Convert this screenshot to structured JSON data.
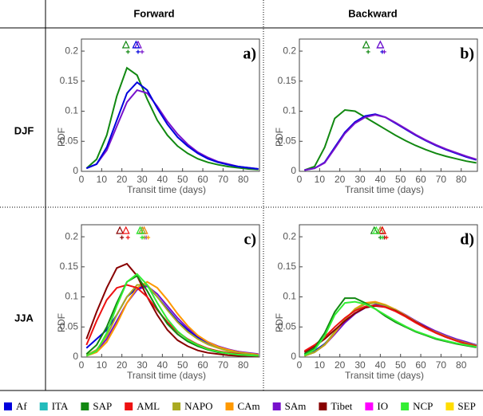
{
  "headers": {
    "columns": [
      "Forward",
      "Backward"
    ],
    "rows": [
      "DJF",
      "JJA"
    ]
  },
  "legend": [
    {
      "name": "Af",
      "color": "#0000dd"
    },
    {
      "name": "ITA",
      "color": "#22bbbb"
    },
    {
      "name": "SAP",
      "color": "#118811"
    },
    {
      "name": "AML",
      "color": "#ee1111"
    },
    {
      "name": "NAPO",
      "color": "#aaaa22"
    },
    {
      "name": "CAm",
      "color": "#ff9900"
    },
    {
      "name": "SAm",
      "color": "#7711cc"
    },
    {
      "name": "Tibet",
      "color": "#880000"
    },
    {
      "name": "IO",
      "color": "#ff00ff"
    },
    {
      "name": "NCP",
      "color": "#33ee33"
    },
    {
      "name": "SEP",
      "color": "#ffdd00"
    }
  ],
  "chart_data": [
    {
      "type": "line",
      "panel_label": "a)",
      "xlabel": "Transit time (days)",
      "ylabel": "PDF",
      "x": [
        2.5,
        7.5,
        12.5,
        17.5,
        22.5,
        27.5,
        32.5,
        37.5,
        42.5,
        47.5,
        52.5,
        57.5,
        62.5,
        67.5,
        72.5,
        77.5,
        82.5,
        87.5
      ],
      "xlim": [
        0,
        88
      ],
      "xticks": [
        0,
        10,
        20,
        30,
        40,
        50,
        60,
        70,
        80
      ],
      "ylim": [
        0,
        0.22
      ],
      "yticks": [
        0,
        0.05,
        0.1,
        0.15,
        0.2
      ],
      "series": [
        {
          "name": "SAP",
          "color": "#118811",
          "mean": 22,
          "median": 23,
          "values": [
            0.005,
            0.02,
            0.06,
            0.125,
            0.172,
            0.16,
            0.12,
            0.085,
            0.06,
            0.042,
            0.03,
            0.021,
            0.015,
            0.011,
            0.008,
            0.006,
            0.004,
            0.003
          ]
        },
        {
          "name": "SAm",
          "color": "#7711cc",
          "mean": 28,
          "median": 30,
          "values": [
            0.005,
            0.012,
            0.035,
            0.075,
            0.115,
            0.135,
            0.13,
            0.108,
            0.083,
            0.062,
            0.045,
            0.032,
            0.023,
            0.016,
            0.012,
            0.008,
            0.006,
            0.004
          ]
        },
        {
          "name": "Af",
          "color": "#0000dd",
          "mean": 27,
          "median": 28,
          "values": [
            0.005,
            0.012,
            0.04,
            0.085,
            0.13,
            0.148,
            0.135,
            0.105,
            0.078,
            0.057,
            0.042,
            0.03,
            0.021,
            0.015,
            0.011,
            0.008,
            0.006,
            0.004
          ]
        }
      ]
    },
    {
      "type": "line",
      "panel_label": "b)",
      "xlabel": "Transit time (days)",
      "ylabel": "PDF",
      "x": [
        2.5,
        7.5,
        12.5,
        17.5,
        22.5,
        27.5,
        32.5,
        37.5,
        42.5,
        47.5,
        52.5,
        57.5,
        62.5,
        67.5,
        72.5,
        77.5,
        82.5,
        87.5
      ],
      "xlim": [
        0,
        88
      ],
      "xticks": [
        0,
        10,
        20,
        30,
        40,
        50,
        60,
        70,
        80
      ],
      "ylim": [
        0,
        0.22
      ],
      "yticks": [
        0,
        0.05,
        0.1,
        0.15,
        0.2
      ],
      "series": [
        {
          "name": "SAP",
          "color": "#118811",
          "mean": 33,
          "median": 34,
          "values": [
            0.002,
            0.008,
            0.04,
            0.088,
            0.102,
            0.1,
            0.09,
            0.08,
            0.07,
            0.06,
            0.051,
            0.043,
            0.036,
            0.03,
            0.025,
            0.021,
            0.017,
            0.014
          ]
        },
        {
          "name": "Af",
          "color": "#0000dd",
          "mean": 40,
          "median": 41,
          "values": [
            0.002,
            0.005,
            0.015,
            0.04,
            0.065,
            0.082,
            0.092,
            0.095,
            0.09,
            0.08,
            0.07,
            0.06,
            0.051,
            0.043,
            0.036,
            0.03,
            0.024,
            0.019
          ]
        },
        {
          "name": "SAm",
          "color": "#7711cc",
          "mean": 40,
          "median": 42,
          "values": [
            0.002,
            0.005,
            0.014,
            0.038,
            0.063,
            0.08,
            0.09,
            0.094,
            0.09,
            0.081,
            0.071,
            0.061,
            0.052,
            0.044,
            0.037,
            0.031,
            0.025,
            0.02
          ]
        }
      ]
    },
    {
      "type": "line",
      "panel_label": "c)",
      "xlabel": "Transit time (days)",
      "ylabel": "PDF",
      "x": [
        2.5,
        7.5,
        12.5,
        17.5,
        22.5,
        27.5,
        32.5,
        37.5,
        42.5,
        47.5,
        52.5,
        57.5,
        62.5,
        67.5,
        72.5,
        77.5,
        82.5,
        87.5
      ],
      "xlim": [
        0,
        88
      ],
      "xticks": [
        0,
        10,
        20,
        30,
        40,
        50,
        60,
        70,
        80
      ],
      "ylim": [
        0,
        0.22
      ],
      "yticks": [
        0,
        0.05,
        0.1,
        0.15,
        0.2
      ],
      "series": [
        {
          "name": "Af",
          "color": "#0000dd",
          "mean": 30,
          "median": 31,
          "values": [
            0.015,
            0.03,
            0.045,
            0.07,
            0.1,
            0.115,
            0.118,
            0.1,
            0.08,
            0.06,
            0.045,
            0.033,
            0.024,
            0.017,
            0.012,
            0.009,
            0.006,
            0.004
          ]
        },
        {
          "name": "SAm",
          "color": "#7711cc",
          "mean": 31,
          "median": 32,
          "values": [
            0.002,
            0.01,
            0.03,
            0.06,
            0.09,
            0.112,
            0.118,
            0.105,
            0.085,
            0.065,
            0.048,
            0.035,
            0.025,
            0.018,
            0.013,
            0.009,
            0.007,
            0.005
          ]
        },
        {
          "name": "CAm",
          "color": "#ff9900",
          "mean": 31,
          "median": 33,
          "values": [
            0.002,
            0.008,
            0.025,
            0.055,
            0.09,
            0.115,
            0.125,
            0.115,
            0.095,
            0.072,
            0.052,
            0.036,
            0.025,
            0.017,
            0.012,
            0.008,
            0.006,
            0.004
          ]
        },
        {
          "name": "NAPO",
          "color": "#aaaa22",
          "mean": 30,
          "median": 31,
          "values": [
            0.003,
            0.012,
            0.035,
            0.07,
            0.1,
            0.12,
            0.12,
            0.1,
            0.078,
            0.058,
            0.042,
            0.03,
            0.021,
            0.015,
            0.01,
            0.007,
            0.005,
            0.003
          ]
        },
        {
          "name": "Tibet",
          "color": "#880000",
          "mean": 19,
          "median": 20,
          "values": [
            0.03,
            0.075,
            0.115,
            0.148,
            0.155,
            0.135,
            0.1,
            0.07,
            0.045,
            0.028,
            0.018,
            0.011,
            0.007,
            0.005,
            0.003,
            0.002,
            0.002,
            0.001
          ]
        },
        {
          "name": "AML",
          "color": "#ee1111",
          "mean": 22,
          "median": 23,
          "values": [
            0.02,
            0.06,
            0.095,
            0.115,
            0.12,
            0.115,
            0.1,
            0.078,
            0.058,
            0.042,
            0.03,
            0.021,
            0.014,
            0.01,
            0.007,
            0.005,
            0.003,
            0.002
          ]
        },
        {
          "name": "SAP",
          "color": "#118811",
          "mean": 29,
          "median": 30,
          "values": [
            0.005,
            0.02,
            0.05,
            0.09,
            0.125,
            0.135,
            0.11,
            0.08,
            0.055,
            0.038,
            0.026,
            0.018,
            0.012,
            0.008,
            0.006,
            0.004,
            0.003,
            0.002
          ]
        },
        {
          "name": "NCP",
          "color": "#33ee33",
          "mean": 29,
          "median": 30,
          "values": [
            0.002,
            0.01,
            0.04,
            0.085,
            0.125,
            0.138,
            0.12,
            0.09,
            0.063,
            0.043,
            0.029,
            0.02,
            0.013,
            0.009,
            0.006,
            0.004,
            0.003,
            0.002
          ]
        }
      ]
    },
    {
      "type": "line",
      "panel_label": "d)",
      "xlabel": "Transit time (days)",
      "ylabel": "PDF",
      "x": [
        2.5,
        7.5,
        12.5,
        17.5,
        22.5,
        27.5,
        32.5,
        37.5,
        42.5,
        47.5,
        52.5,
        57.5,
        62.5,
        67.5,
        72.5,
        77.5,
        82.5,
        87.5
      ],
      "xlim": [
        0,
        88
      ],
      "xticks": [
        0,
        10,
        20,
        30,
        40,
        50,
        60,
        70,
        80
      ],
      "ylim": [
        0,
        0.22
      ],
      "yticks": [
        0,
        0.05,
        0.1,
        0.15,
        0.2
      ],
      "series": [
        {
          "name": "Af",
          "color": "#0000dd",
          "mean": 40,
          "median": 41,
          "values": [
            0.003,
            0.01,
            0.022,
            0.04,
            0.058,
            0.072,
            0.082,
            0.087,
            0.085,
            0.079,
            0.07,
            0.06,
            0.051,
            0.042,
            0.035,
            0.029,
            0.024,
            0.02
          ]
        },
        {
          "name": "SAm",
          "color": "#7711cc",
          "mean": 40,
          "median": 42,
          "values": [
            0.002,
            0.008,
            0.02,
            0.038,
            0.057,
            0.072,
            0.082,
            0.086,
            0.085,
            0.079,
            0.07,
            0.06,
            0.051,
            0.043,
            0.036,
            0.03,
            0.025,
            0.02
          ]
        },
        {
          "name": "CAm",
          "color": "#ff9900",
          "mean": 41,
          "median": 43,
          "values": [
            0.002,
            0.008,
            0.02,
            0.04,
            0.062,
            0.08,
            0.09,
            0.092,
            0.087,
            0.079,
            0.069,
            0.059,
            0.049,
            0.041,
            0.034,
            0.028,
            0.023,
            0.019
          ]
        },
        {
          "name": "NAPO",
          "color": "#aaaa22",
          "mean": 40,
          "median": 42,
          "values": [
            0.002,
            0.008,
            0.021,
            0.042,
            0.063,
            0.079,
            0.088,
            0.09,
            0.086,
            0.078,
            0.068,
            0.058,
            0.049,
            0.041,
            0.034,
            0.028,
            0.023,
            0.019
          ]
        },
        {
          "name": "Tibet",
          "color": "#880000",
          "mean": 41,
          "median": 42,
          "values": [
            0.008,
            0.018,
            0.03,
            0.045,
            0.06,
            0.073,
            0.082,
            0.085,
            0.083,
            0.077,
            0.068,
            0.058,
            0.049,
            0.04,
            0.033,
            0.027,
            0.022,
            0.018
          ]
        },
        {
          "name": "AML",
          "color": "#ee1111",
          "mean": 41,
          "median": 43,
          "values": [
            0.01,
            0.02,
            0.033,
            0.05,
            0.065,
            0.077,
            0.084,
            0.086,
            0.083,
            0.076,
            0.067,
            0.057,
            0.048,
            0.04,
            0.033,
            0.027,
            0.022,
            0.018
          ]
        },
        {
          "name": "SAP",
          "color": "#118811",
          "mean": 37,
          "median": 40,
          "values": [
            0.005,
            0.015,
            0.04,
            0.075,
            0.098,
            0.098,
            0.09,
            0.08,
            0.068,
            0.058,
            0.05,
            0.042,
            0.036,
            0.03,
            0.026,
            0.022,
            0.019,
            0.016
          ]
        },
        {
          "name": "NCP",
          "color": "#33ee33",
          "mean": 38,
          "median": 41,
          "values": [
            0.003,
            0.012,
            0.035,
            0.07,
            0.09,
            0.092,
            0.088,
            0.08,
            0.07,
            0.06,
            0.051,
            0.043,
            0.037,
            0.031,
            0.027,
            0.023,
            0.02,
            0.017
          ]
        }
      ]
    }
  ]
}
